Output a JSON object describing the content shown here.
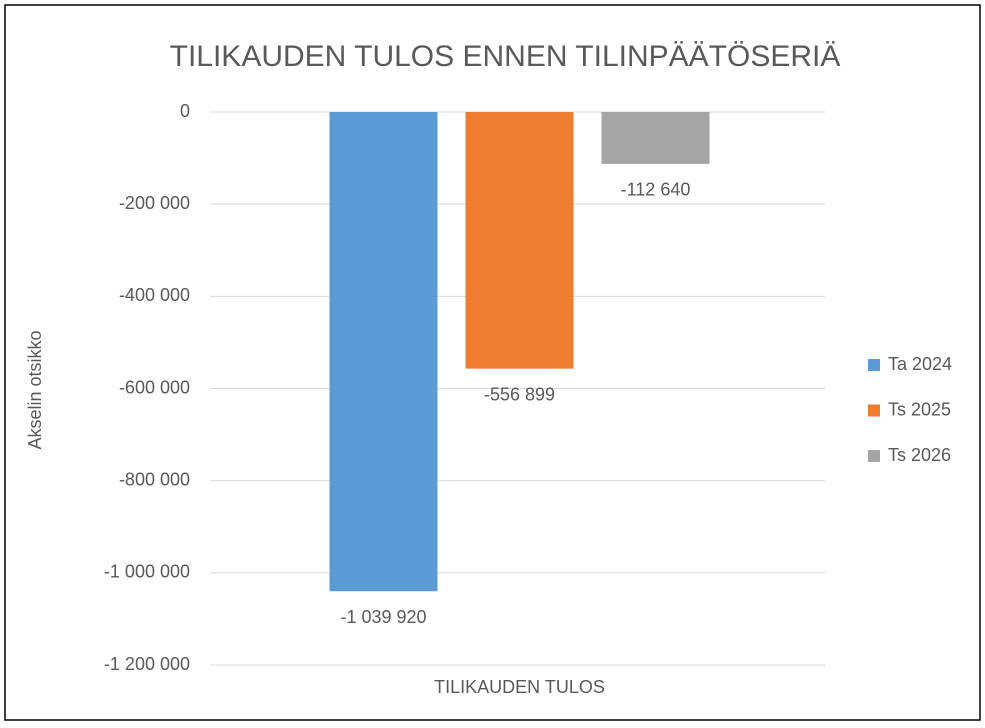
{
  "chart_data": {
    "type": "bar",
    "title": "TILIKAUDEN TULOS ENNEN TILINPÄÄTÖSERIÄ",
    "y_label": "Akselin otsikko",
    "categories": [
      "TILIKAUDEN TULOS"
    ],
    "series": [
      {
        "name": "Ta 2024",
        "color": "#5b9bd5",
        "values": [
          -1039920
        ],
        "value_labels": [
          "-1 039 920"
        ]
      },
      {
        "name": "Ts 2025",
        "color": "#ed7d31",
        "values": [
          -556899
        ],
        "value_labels": [
          "-556 899"
        ]
      },
      {
        "name": "Ts 2026",
        "color": "#a5a5a5",
        "values": [
          -112640
        ],
        "value_labels": [
          "-112 640"
        ]
      }
    ],
    "ylim": [
      -1200000,
      0
    ],
    "yticks": [
      0,
      {
        "value": -200000,
        "label": "-200 000"
      },
      {
        "value": -400000,
        "label": "-400 000"
      },
      {
        "value": -600000,
        "label": "-600 000"
      },
      {
        "value": -800000,
        "label": "-800 000"
      },
      {
        "value": -1000000,
        "label": "-1 000 000"
      },
      {
        "value": -1200000,
        "label": "-1 200 000"
      }
    ],
    "grid": true,
    "legend": "right"
  }
}
